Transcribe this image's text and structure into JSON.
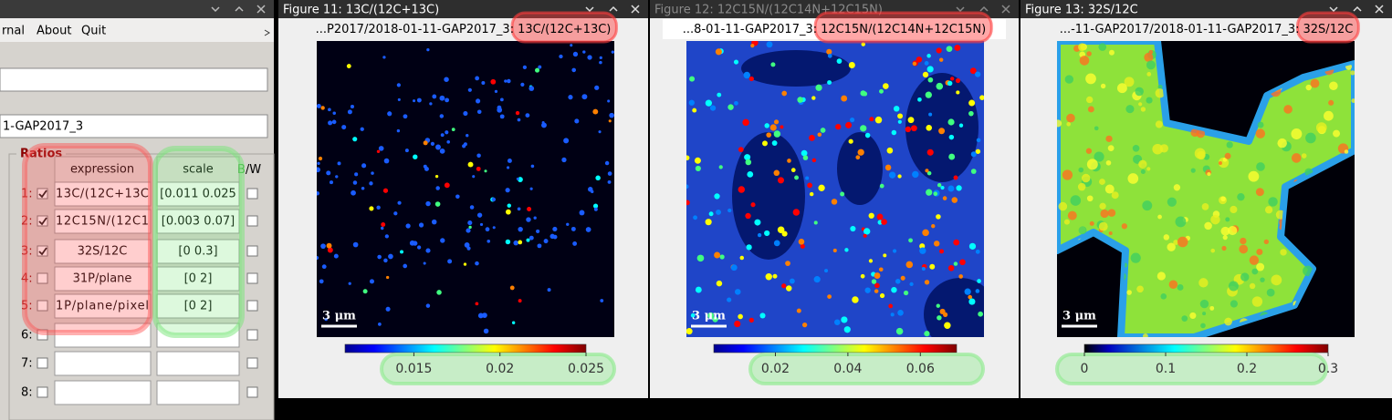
{
  "menu": [
    "rnal",
    "About",
    "Quit"
  ],
  "left_panel": {
    "file_field": "1-GAP2017_3",
    "group_title": "Ratios",
    "headers": {
      "expression": "expression",
      "scale": "scale",
      "bw": [
        "B",
        "/W"
      ]
    },
    "rows": [
      {
        "index": "1:",
        "checked": true,
        "expression": "13C/(12C+13C",
        "scale": "[0.011 0.025"
      },
      {
        "index": "2:",
        "checked": true,
        "expression": "12C15N/(12C1",
        "scale": "[0.003 0.07]"
      },
      {
        "index": "3:",
        "checked": true,
        "expression": "32S/12C",
        "scale": "[0 0.3]"
      },
      {
        "index": "4:",
        "checked": false,
        "expression": "31P/plane",
        "scale": "[0 2]"
      },
      {
        "index": "5:",
        "checked": false,
        "expression": "1P/plane/pixel",
        "scale": "[0 2]"
      },
      {
        "index": "6:",
        "checked": false
      },
      {
        "index": "7:",
        "checked": false
      },
      {
        "index": "8:",
        "checked": false
      }
    ]
  },
  "figures": [
    {
      "title": "Figure 11: 13C/(12C+13C)",
      "active": true,
      "subtitle": {
        "path": "...P2017/2018-01-11-GAP2017_3:",
        "ratio": "13C/(12C+13C)"
      },
      "scale_bar": "3 μm",
      "clim": [
        0.011,
        0.025
      ],
      "colorbar_ticks": [
        0.015,
        0.02,
        0.025
      ]
    },
    {
      "title": "Figure 12: 12C15N/(12C14N+12C15N)",
      "active": false,
      "subtitle": {
        "path": "...8-01-11-GAP2017_3:",
        "ratio": "12C15N/(12C14N+12C15N)"
      },
      "scale_bar": "3 μm",
      "clim": [
        0.003,
        0.07
      ],
      "colorbar_ticks": [
        0.02,
        0.04,
        0.06
      ]
    },
    {
      "title": "Figure 13: 32S/12C",
      "active": true,
      "subtitle": {
        "path": "...-11-GAP2017/2018-01-11-GAP2017_3:",
        "ratio": "32S/12C"
      },
      "scale_bar": "3 μm",
      "clim": [
        0,
        0.3
      ],
      "colorbar_ticks": [
        0,
        0.1,
        0.2,
        0.3
      ]
    }
  ]
}
